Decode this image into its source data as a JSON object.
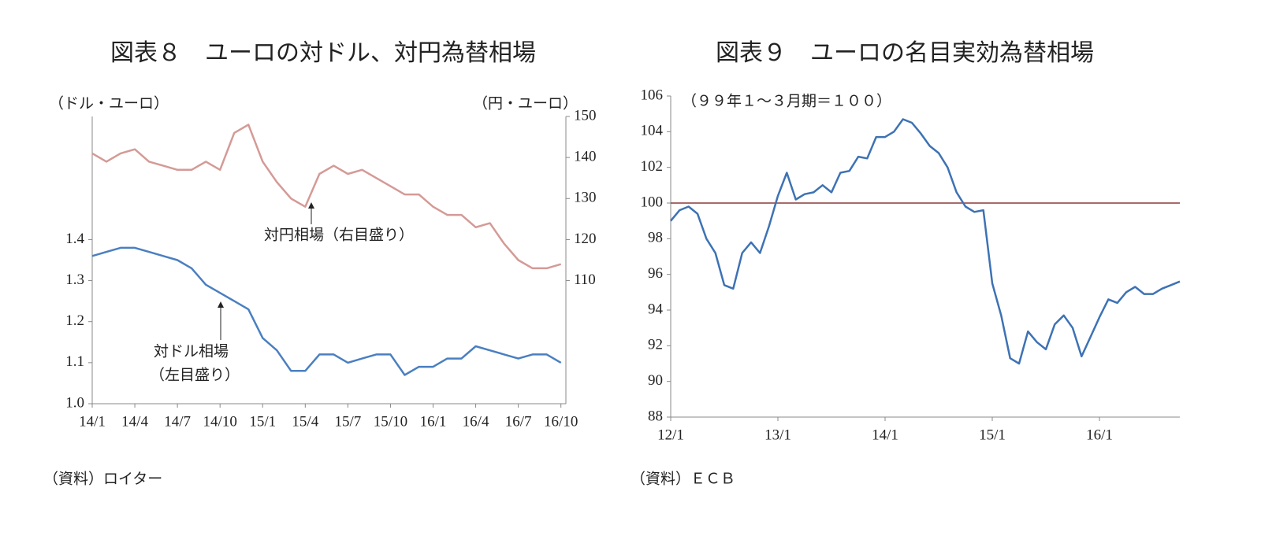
{
  "chart_data": [
    {
      "type": "line",
      "title": "図表８　ユーロの対ドル、対円為替相場",
      "y_label": "（ドル・ユーロ）",
      "y2_label": "（円・ユーロ）",
      "annotations": [
        "対円相場（右目盛り）",
        "対ドル相場",
        "（左目盛り）"
      ],
      "source": "（資料）ロイター",
      "categories": [
        "14/1",
        null,
        null,
        "14/4",
        null,
        null,
        "14/7",
        null,
        null,
        "14/10",
        null,
        null,
        "15/1",
        null,
        null,
        "15/4",
        null,
        null,
        "15/7",
        null,
        null,
        "15/10",
        null,
        null,
        "16/1",
        null,
        null,
        "16/4",
        null,
        null,
        "16/7",
        null,
        null,
        "16/10"
      ],
      "ylim": [
        1.0,
        1.7
      ],
      "yticks": [
        {
          "value": 1,
          "label": "1.0"
        },
        1.1,
        1.2,
        1.3,
        1.4
      ],
      "y2lim": [
        80,
        150
      ],
      "y2ticks": [
        110,
        120,
        130,
        140,
        150
      ],
      "series": [
        {
          "name": "対ドル相場",
          "color": "#4a7fc1",
          "values": [
            1.36,
            1.37,
            1.38,
            1.38,
            1.37,
            1.36,
            1.35,
            1.33,
            1.29,
            1.27,
            1.25,
            1.23,
            1.16,
            1.13,
            1.08,
            1.08,
            1.12,
            1.12,
            1.1,
            1.11,
            1.12,
            1.12,
            1.07,
            1.09,
            1.09,
            1.11,
            1.11,
            1.14,
            1.13,
            1.12,
            1.11,
            1.12,
            1.12,
            1.1
          ]
        },
        {
          "name": "対円相場",
          "color": "#d49a96",
          "axis": "y2",
          "values": [
            141,
            139,
            141,
            142,
            139,
            138,
            137,
            137,
            139,
            137,
            146,
            148,
            139,
            134,
            130,
            128,
            136,
            138,
            136,
            137,
            135,
            133,
            131,
            131,
            128,
            126,
            126,
            123,
            124,
            119,
            115,
            113,
            113,
            114
          ]
        }
      ]
    },
    {
      "type": "line",
      "title": "図表９　ユーロの名目実効為替相場",
      "annotations": [
        "（９９年１～３月期＝１００）"
      ],
      "source": "（資料）ＥＣＢ",
      "categories": [
        "12/1",
        null,
        null,
        null,
        null,
        null,
        null,
        null,
        null,
        null,
        null,
        null,
        "13/1",
        null,
        null,
        null,
        null,
        null,
        null,
        null,
        null,
        null,
        null,
        null,
        "14/1",
        null,
        null,
        null,
        null,
        null,
        null,
        null,
        null,
        null,
        null,
        null,
        "15/1",
        null,
        null,
        null,
        null,
        null,
        null,
        null,
        null,
        null,
        null,
        null,
        "16/1",
        null,
        null,
        null,
        null,
        null,
        null,
        null,
        null,
        null
      ],
      "ylim": [
        88,
        106
      ],
      "yticks": [
        88,
        90,
        92,
        94,
        96,
        98,
        100,
        102,
        104,
        106
      ],
      "hline": {
        "value": 100,
        "color": "#8b3a3a"
      },
      "series": [
        {
          "name": "名目実効為替相場",
          "color": "#3d72b4",
          "values": [
            99.0,
            99.6,
            99.8,
            99.4,
            98.0,
            97.2,
            95.4,
            95.2,
            97.2,
            97.8,
            97.2,
            98.7,
            100.4,
            101.7,
            100.2,
            100.5,
            100.6,
            101.0,
            100.6,
            101.7,
            101.8,
            102.6,
            102.5,
            103.7,
            103.7,
            104.0,
            104.7,
            104.5,
            103.9,
            103.2,
            102.8,
            102.0,
            100.6,
            99.8,
            99.5,
            99.6,
            95.5,
            93.7,
            91.3,
            91.0,
            92.8,
            92.2,
            91.8,
            93.2,
            93.7,
            93.0,
            91.4,
            92.5,
            93.6,
            94.6,
            94.4,
            95.0,
            95.3,
            94.9,
            94.9,
            95.2,
            95.4,
            95.6
          ]
        }
      ]
    }
  ]
}
